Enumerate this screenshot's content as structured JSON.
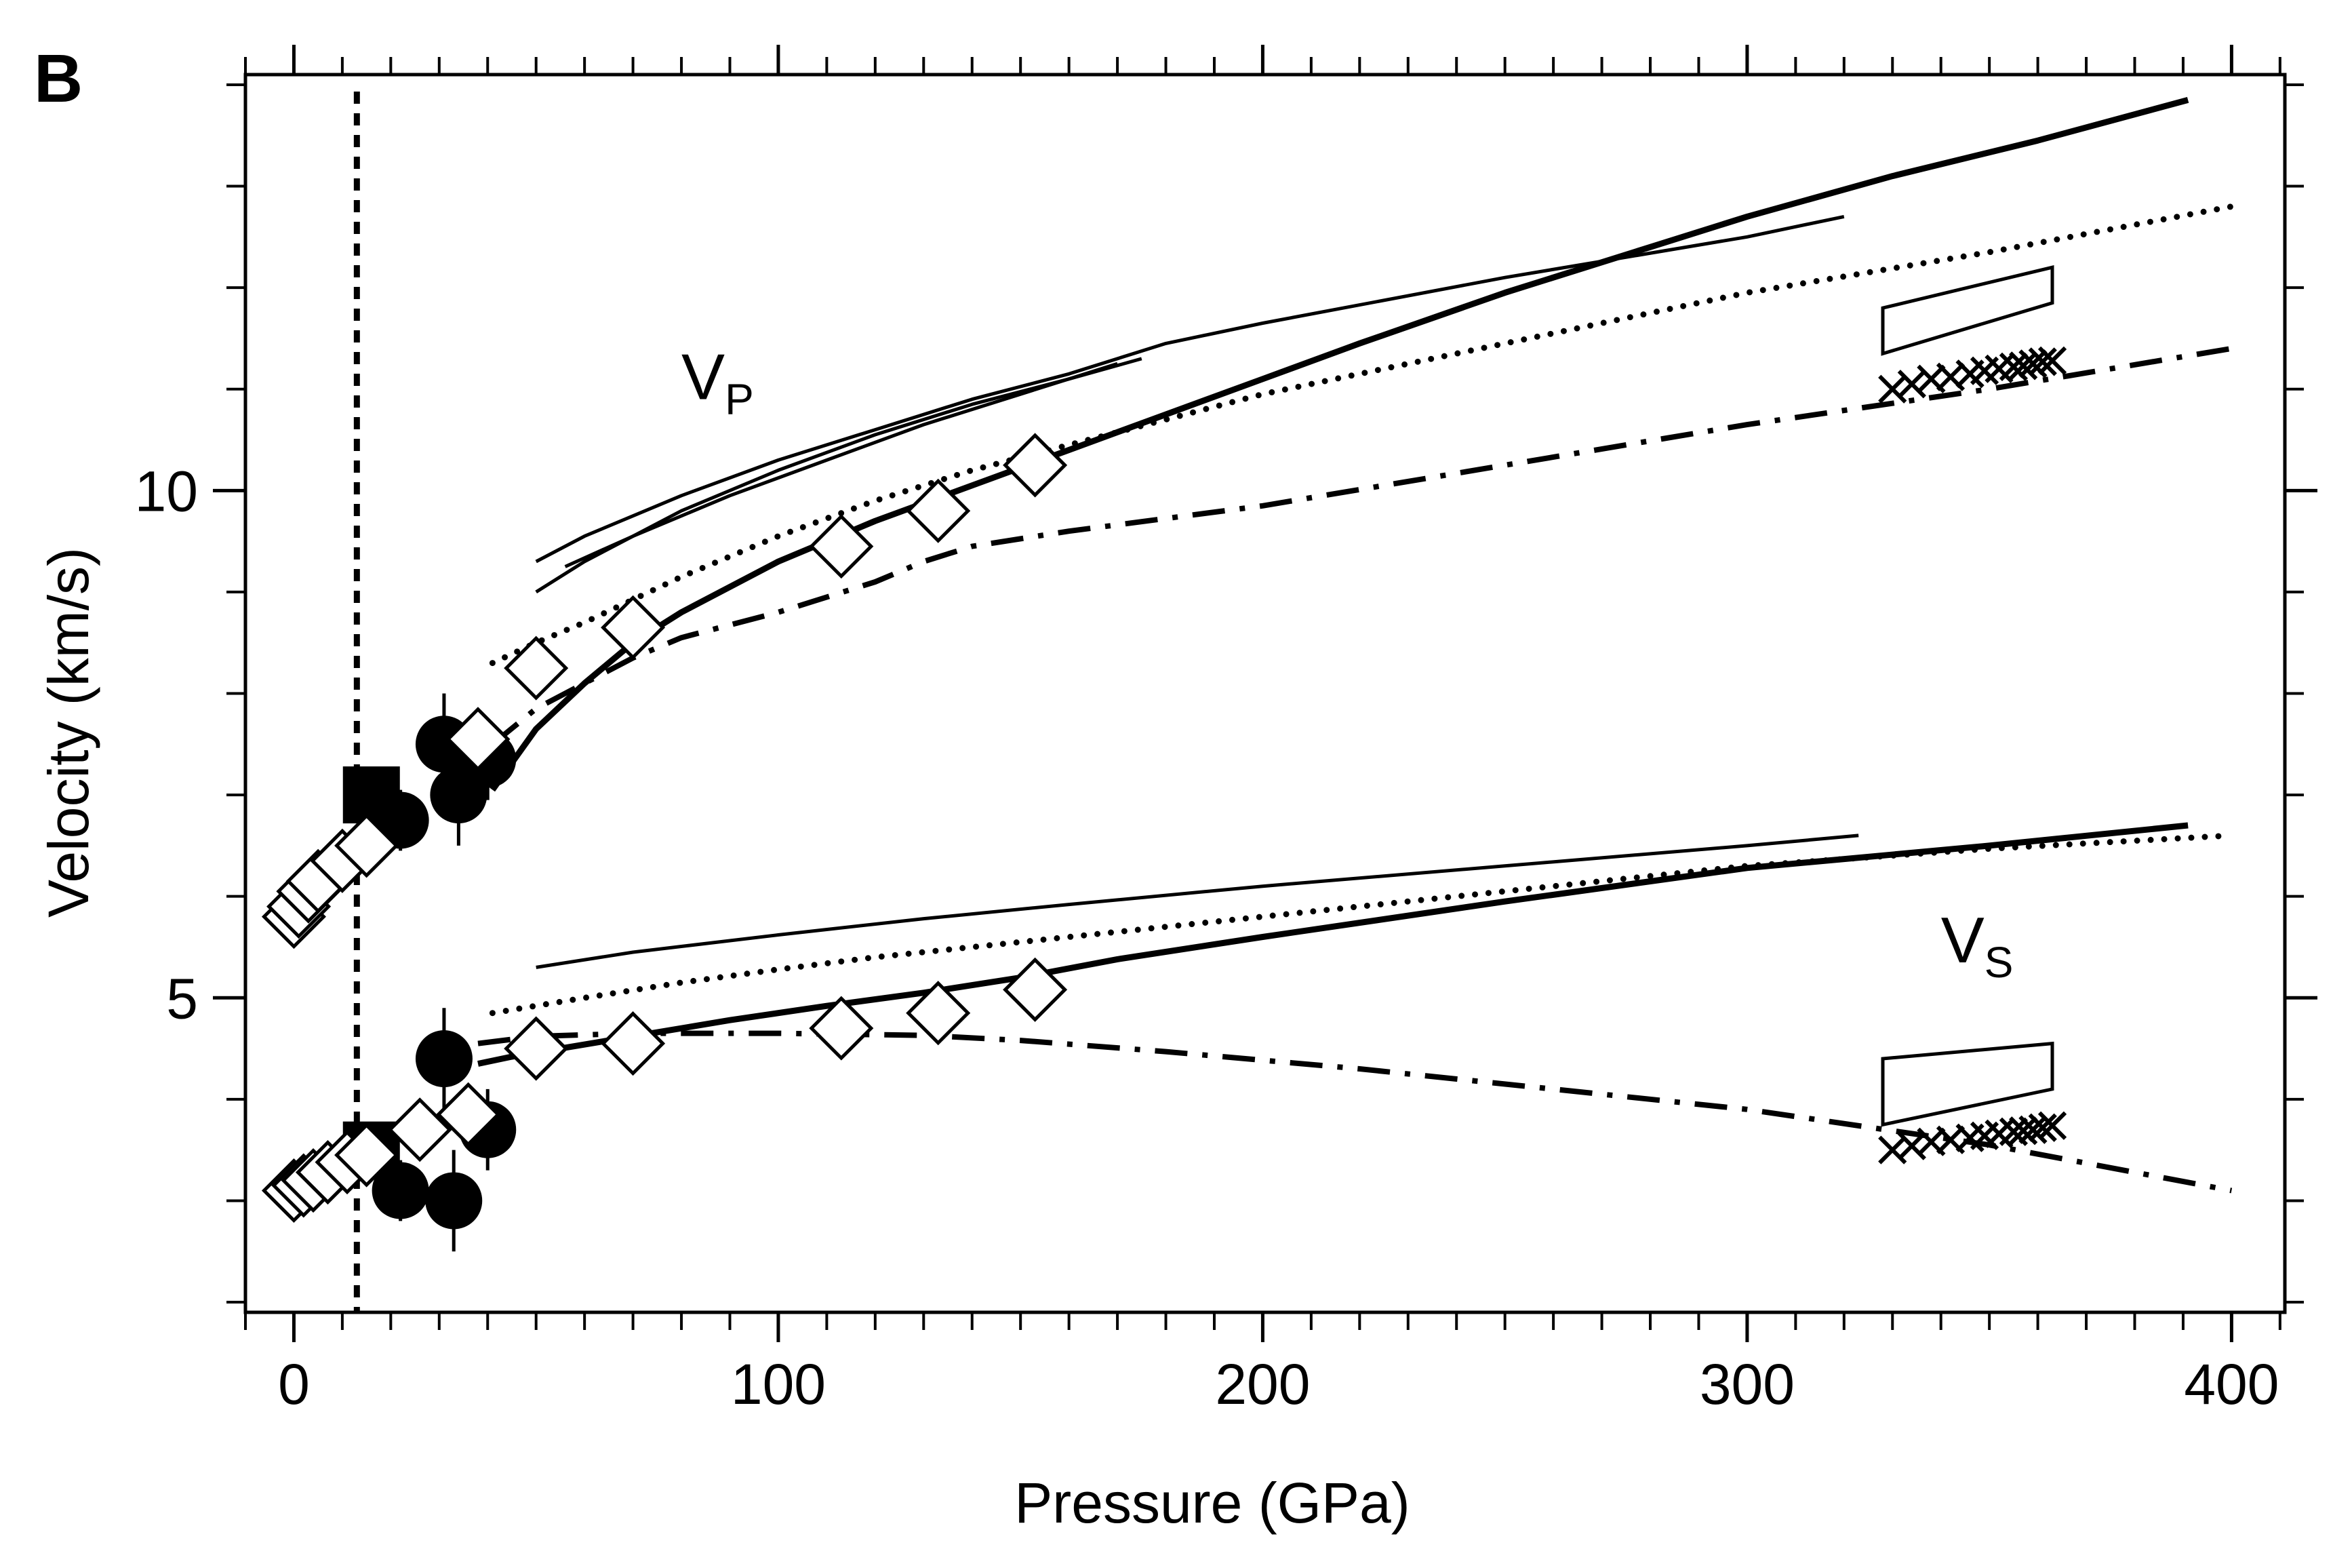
{
  "panel_label": "B",
  "chart_data": {
    "type": "line",
    "xlabel": "Pressure (GPa)",
    "ylabel": "Velocity (km/s)",
    "xlim": [
      -10,
      411
    ],
    "ylim": [
      1.9,
      14.1
    ],
    "x_ticks": [
      0,
      100,
      200,
      300,
      400
    ],
    "x_tick_labels": [
      "0",
      "100",
      "200",
      "300",
      "400"
    ],
    "y_ticks": [
      5,
      10
    ],
    "y_tick_labels": [
      "5",
      "10"
    ],
    "x_minor_step": 10,
    "y_minor_step": 1,
    "grid": false,
    "annotations": [
      {
        "text": "V",
        "sub": "P",
        "x": 80,
        "y": 10.9
      },
      {
        "text": "V",
        "sub": "S",
        "x": 340,
        "y": 5.35
      }
    ],
    "vertical_line": {
      "x": 13,
      "style": "dotted"
    },
    "series": [
      {
        "style": "solid-thick",
        "points": [
          [
            41,
            7.05
          ],
          [
            50,
            7.65
          ],
          [
            60,
            8.1
          ],
          [
            70,
            8.5
          ],
          [
            80,
            8.8
          ],
          [
            100,
            9.3
          ],
          [
            120,
            9.7
          ],
          [
            140,
            10.05
          ],
          [
            160,
            10.4
          ],
          [
            180,
            10.75
          ],
          [
            200,
            11.1
          ],
          [
            220,
            11.45
          ],
          [
            250,
            11.95
          ],
          [
            280,
            12.4
          ],
          [
            300,
            12.7
          ],
          [
            330,
            13.1
          ],
          [
            360,
            13.45
          ],
          [
            391,
            13.85
          ]
        ]
      },
      {
        "style": "dotted-thick",
        "points": [
          [
            41,
            8.3
          ],
          [
            50,
            8.5
          ],
          [
            60,
            8.7
          ],
          [
            80,
            9.15
          ],
          [
            100,
            9.55
          ],
          [
            120,
            9.9
          ],
          [
            140,
            10.2
          ],
          [
            160,
            10.45
          ],
          [
            200,
            10.95
          ],
          [
            250,
            11.45
          ],
          [
            300,
            11.95
          ],
          [
            350,
            12.35
          ],
          [
            400,
            12.8
          ]
        ]
      },
      {
        "style": "dashdot",
        "points": [
          [
            41,
            7.5
          ],
          [
            50,
            7.85
          ],
          [
            60,
            8.1
          ],
          [
            70,
            8.35
          ],
          [
            80,
            8.55
          ],
          [
            100,
            8.8
          ],
          [
            120,
            9.1
          ],
          [
            130,
            9.3
          ],
          [
            140,
            9.45
          ],
          [
            160,
            9.6
          ],
          [
            200,
            9.85
          ],
          [
            250,
            10.25
          ],
          [
            300,
            10.65
          ],
          [
            350,
            11.0
          ],
          [
            400,
            11.4
          ]
        ]
      },
      {
        "style": "solid-thin",
        "points": [
          [
            50,
            9.3
          ],
          [
            60,
            9.55
          ],
          [
            80,
            9.95
          ],
          [
            100,
            10.3
          ],
          [
            120,
            10.6
          ],
          [
            140,
            10.9
          ],
          [
            160,
            11.15
          ],
          [
            180,
            11.45
          ],
          [
            200,
            11.65
          ],
          [
            250,
            12.1
          ],
          [
            300,
            12.5
          ],
          [
            320,
            12.7
          ]
        ]
      },
      {
        "style": "solid-thin",
        "points": [
          [
            50,
            9.0
          ],
          [
            60,
            9.3
          ],
          [
            80,
            9.8
          ],
          [
            100,
            10.2
          ],
          [
            120,
            10.55
          ],
          [
            140,
            10.85
          ],
          [
            160,
            11.1
          ],
          [
            175,
            11.3
          ]
        ]
      },
      {
        "style": "solid-thin",
        "points": [
          [
            56,
            9.25
          ],
          [
            70,
            9.55
          ],
          [
            90,
            9.95
          ],
          [
            110,
            10.3
          ],
          [
            130,
            10.65
          ],
          [
            150,
            10.95
          ],
          [
            170,
            11.25
          ]
        ]
      },
      {
        "style": "solid-thick",
        "points": [
          [
            38,
            4.35
          ],
          [
            45,
            4.42
          ],
          [
            55,
            4.5
          ],
          [
            70,
            4.62
          ],
          [
            90,
            4.78
          ],
          [
            110,
            4.92
          ],
          [
            130,
            5.05
          ],
          [
            150,
            5.2
          ],
          [
            170,
            5.38
          ],
          [
            200,
            5.6
          ],
          [
            250,
            5.95
          ],
          [
            300,
            6.28
          ],
          [
            350,
            6.5
          ],
          [
            391,
            6.7
          ]
        ]
      },
      {
        "style": "dotted-thick",
        "points": [
          [
            41,
            4.85
          ],
          [
            60,
            5.0
          ],
          [
            80,
            5.15
          ],
          [
            100,
            5.28
          ],
          [
            120,
            5.4
          ],
          [
            150,
            5.55
          ],
          [
            200,
            5.8
          ],
          [
            250,
            6.05
          ],
          [
            300,
            6.3
          ],
          [
            350,
            6.47
          ],
          [
            400,
            6.6
          ]
        ]
      },
      {
        "style": "dashdot",
        "points": [
          [
            38,
            4.55
          ],
          [
            50,
            4.62
          ],
          [
            70,
            4.65
          ],
          [
            100,
            4.65
          ],
          [
            130,
            4.63
          ],
          [
            150,
            4.58
          ],
          [
            180,
            4.47
          ],
          [
            220,
            4.3
          ],
          [
            260,
            4.1
          ],
          [
            300,
            3.9
          ],
          [
            350,
            3.55
          ],
          [
            400,
            3.1
          ]
        ]
      },
      {
        "style": "solid-thin",
        "points": [
          [
            50,
            5.3
          ],
          [
            70,
            5.45
          ],
          [
            100,
            5.62
          ],
          [
            130,
            5.78
          ],
          [
            160,
            5.92
          ],
          [
            200,
            6.1
          ],
          [
            250,
            6.3
          ],
          [
            300,
            6.5
          ],
          [
            323,
            6.6
          ]
        ]
      }
    ],
    "scatter_open_diamonds": [
      [
        0,
        5.8
      ],
      [
        1,
        5.9
      ],
      [
        3,
        6.05
      ],
      [
        5,
        6.15
      ],
      [
        10,
        6.35
      ],
      [
        15,
        6.5
      ],
      [
        38,
        7.55
      ],
      [
        50,
        8.25
      ],
      [
        70,
        8.65
      ],
      [
        113,
        9.45
      ],
      [
        133,
        9.8
      ],
      [
        153,
        10.25
      ],
      [
        0,
        3.1
      ],
      [
        2,
        3.15
      ],
      [
        4,
        3.2
      ],
      [
        7,
        3.28
      ],
      [
        11,
        3.38
      ],
      [
        15,
        3.45
      ],
      [
        26,
        3.7
      ],
      [
        36,
        3.85
      ],
      [
        50,
        4.5
      ],
      [
        70,
        4.55
      ],
      [
        113,
        4.7
      ],
      [
        133,
        4.85
      ],
      [
        153,
        5.08
      ]
    ],
    "scatter_filled_circles": [
      {
        "x": 22,
        "y": 6.75,
        "err": 0.3
      },
      {
        "x": 31,
        "y": 7.5,
        "err": 0.5
      },
      {
        "x": 34,
        "y": 7.0,
        "err": 0.5
      },
      {
        "x": 40,
        "y": 7.35,
        "err": 0.4
      },
      {
        "x": 31,
        "y": 4.4,
        "err": 0.5
      },
      {
        "x": 22,
        "y": 3.1,
        "err": 0.3
      },
      {
        "x": 33,
        "y": 3.0,
        "err": 0.5
      },
      {
        "x": 40,
        "y": 3.7,
        "err": 0.4
      }
    ],
    "scatter_filled_squares": [
      [
        16,
        7.0
      ],
      [
        16,
        3.5
      ]
    ],
    "scatter_crosses": [
      [
        330,
        11.0
      ],
      [
        334,
        11.05
      ],
      [
        338,
        11.1
      ],
      [
        342,
        11.12
      ],
      [
        346,
        11.15
      ],
      [
        349,
        11.18
      ],
      [
        352,
        11.2
      ],
      [
        355,
        11.22
      ],
      [
        357,
        11.23
      ],
      [
        359,
        11.25
      ],
      [
        361,
        11.27
      ],
      [
        363,
        11.28
      ],
      [
        330,
        3.5
      ],
      [
        334,
        3.54
      ],
      [
        338,
        3.58
      ],
      [
        342,
        3.6
      ],
      [
        346,
        3.62
      ],
      [
        349,
        3.64
      ],
      [
        352,
        3.66
      ],
      [
        355,
        3.68
      ],
      [
        357,
        3.69
      ],
      [
        359,
        3.7
      ],
      [
        361,
        3.72
      ],
      [
        363,
        3.74
      ]
    ],
    "boxes": [
      {
        "corners": [
          [
            328,
            11.35
          ],
          [
            363,
            11.85
          ],
          [
            363,
            12.2
          ],
          [
            328,
            11.8
          ]
        ]
      },
      {
        "corners": [
          [
            328,
            3.75
          ],
          [
            363,
            4.1
          ],
          [
            363,
            4.55
          ],
          [
            328,
            4.4
          ]
        ]
      }
    ]
  }
}
